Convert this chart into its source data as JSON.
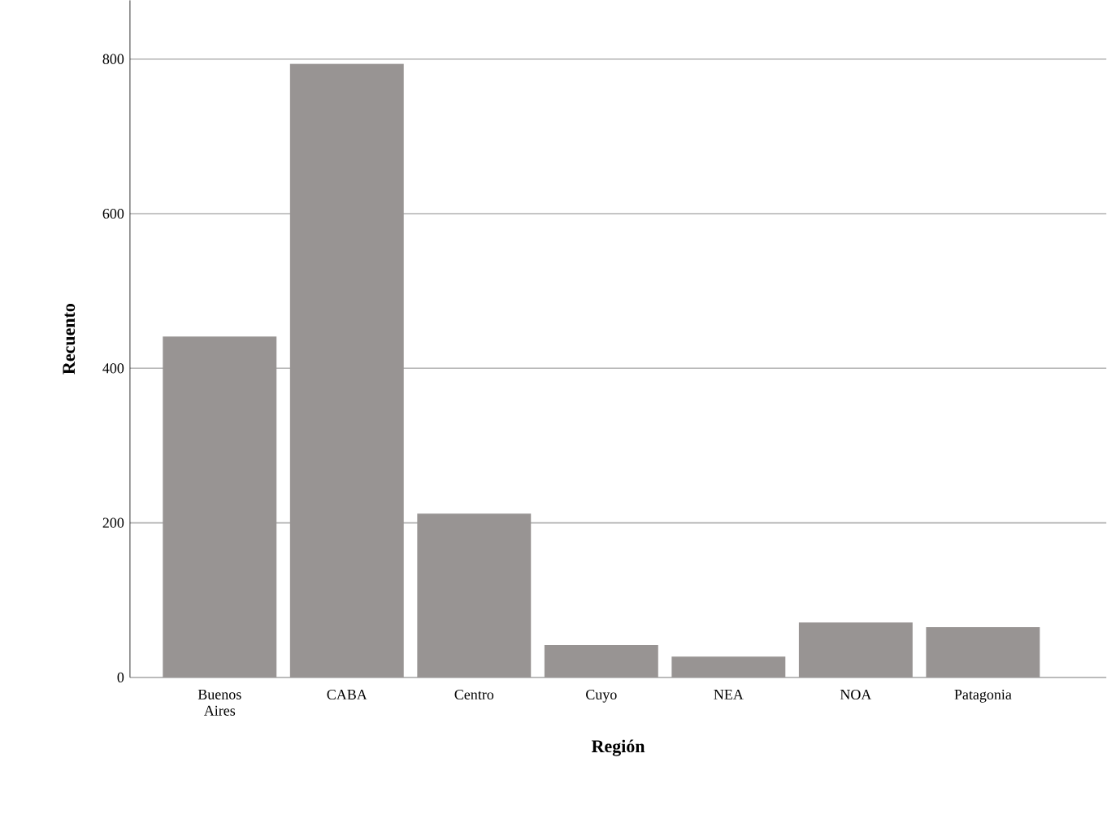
{
  "chart_data": {
    "type": "bar",
    "xlabel": "Región",
    "ylabel": "Recuento",
    "categories": [
      "Buenos Aires",
      "CABA",
      "Centro",
      "Cuyo",
      "NEA",
      "NOA",
      "Patagonia"
    ],
    "values": [
      441,
      794,
      212,
      42,
      27,
      71,
      65
    ],
    "color": "#989493",
    "ylim": [
      0,
      876
    ],
    "yticks": [
      0,
      200,
      400,
      600,
      800
    ],
    "grid": "y"
  }
}
